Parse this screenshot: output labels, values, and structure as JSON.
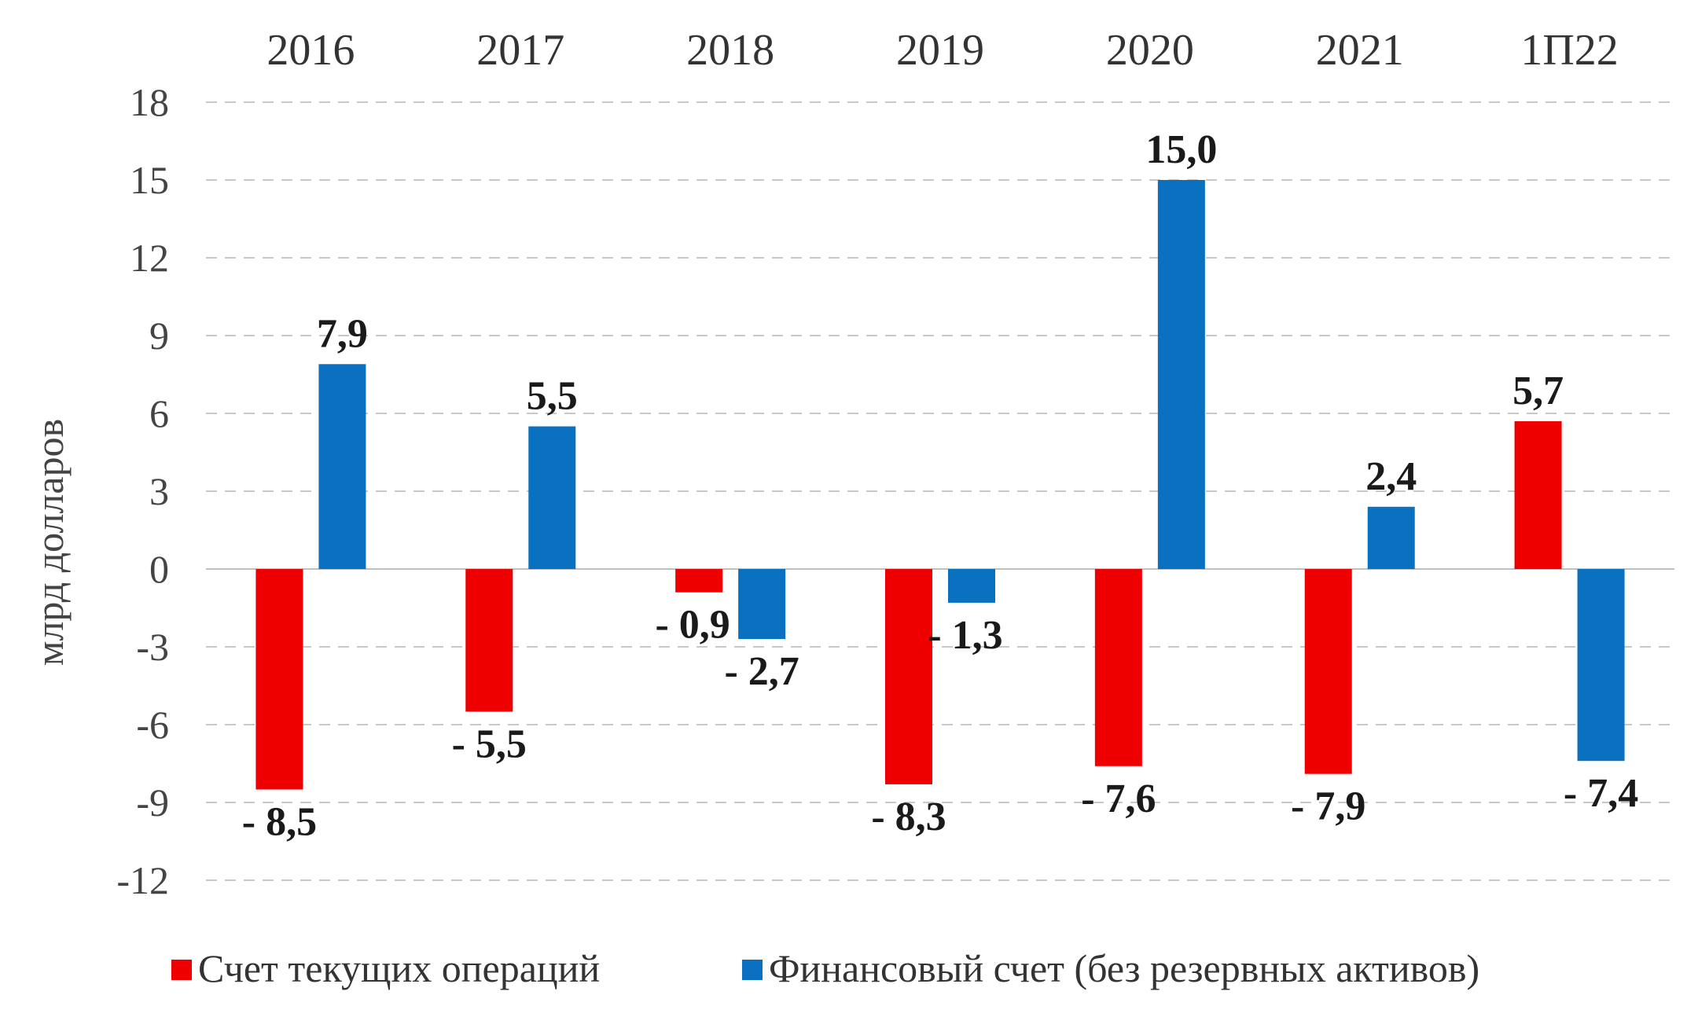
{
  "chart_data": {
    "type": "bar",
    "categories": [
      "2016",
      "2017",
      "2018",
      "2019",
      "2020",
      "2021",
      "1П22"
    ],
    "series": [
      {
        "name": "Счет текущих операций",
        "color": "#ee0000",
        "values": [
          -8.5,
          -5.5,
          -0.9,
          -8.3,
          -7.6,
          -7.9,
          5.7
        ],
        "labels": [
          "- 8,5",
          "- 5,5",
          "- 0,9",
          "- 8,3",
          "- 7,6",
          "- 7,9",
          "5,7"
        ]
      },
      {
        "name": "Финансовый счет (без резервных активов)",
        "color": "#0a70c0",
        "values": [
          7.9,
          5.5,
          -2.7,
          -1.3,
          15.0,
          2.4,
          -7.4
        ],
        "labels": [
          "7,9",
          "5,5",
          "- 2,7",
          "- 1,3",
          "15,0",
          "2,4",
          "- 7,4"
        ]
      }
    ],
    "ylabel": "млрд долларов",
    "ylim": [
      -12,
      18
    ],
    "yticks": [
      18,
      15,
      12,
      9,
      6,
      3,
      0,
      -3,
      -6,
      -9,
      -12
    ],
    "ytick_labels": [
      "18",
      "15",
      "12",
      "9",
      "6",
      "3",
      "0",
      "-3",
      "-6",
      "-9",
      "-12"
    ],
    "category_position": "top",
    "grid": true,
    "legend_position": "bottom"
  }
}
